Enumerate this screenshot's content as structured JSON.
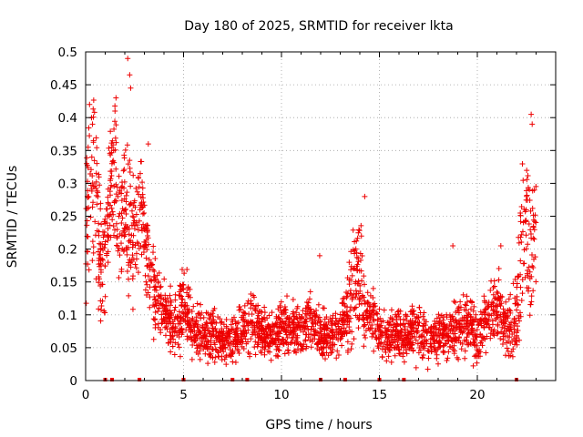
{
  "chart_data": {
    "type": "scatter",
    "title": "Day 180 of 2025, SRMTID for receiver lkta",
    "xlabel": "GPS time / hours",
    "ylabel": "SRMTID / TECUs",
    "xlim": [
      0,
      24
    ],
    "ylim": [
      0,
      0.5
    ],
    "x_ticks": [
      0,
      5,
      10,
      15,
      20
    ],
    "x_tick_labels": [
      "0",
      "5",
      "10",
      "15",
      "20"
    ],
    "y_ticks": [
      0,
      0.05,
      0.1,
      0.15,
      0.2,
      0.25,
      0.3,
      0.35,
      0.4,
      0.45,
      0.5
    ],
    "y_tick_labels": [
      "0",
      "0.05",
      "0.1",
      "0.15",
      "0.2",
      "0.25",
      "0.3",
      "0.35",
      "0.4",
      "0.45",
      "0.5"
    ],
    "grid": true,
    "marker": "+",
    "color": "#ee0000",
    "trend_hours": [
      0,
      0.25,
      0.5,
      0.75,
      1.0,
      1.25,
      1.5,
      1.75,
      2.0,
      2.25,
      2.5,
      2.75,
      3.0,
      3.25,
      3.5,
      3.75,
      4.0,
      4.25,
      4.5,
      4.75,
      5.0,
      5.5,
      6.0,
      6.5,
      7.0,
      7.5,
      8.0,
      8.5,
      9.0,
      9.5,
      10.0,
      10.5,
      11.0,
      11.5,
      12.0,
      12.5,
      13.0,
      13.5,
      13.75,
      14.0,
      14.25,
      14.5,
      14.75,
      15.0,
      15.5,
      16.0,
      16.5,
      17.0,
      17.5,
      18.0,
      18.5,
      19.0,
      19.5,
      20.0,
      20.5,
      21.0,
      21.5,
      22.0,
      22.25,
      22.5,
      22.75,
      23.0
    ],
    "trend_values": [
      0.23,
      0.3,
      0.3,
      0.18,
      0.2,
      0.3,
      0.32,
      0.22,
      0.26,
      0.24,
      0.22,
      0.28,
      0.22,
      0.18,
      0.14,
      0.12,
      0.1,
      0.09,
      0.08,
      0.1,
      0.12,
      0.08,
      0.07,
      0.07,
      0.06,
      0.06,
      0.08,
      0.09,
      0.07,
      0.07,
      0.08,
      0.08,
      0.08,
      0.09,
      0.07,
      0.07,
      0.08,
      0.11,
      0.16,
      0.17,
      0.12,
      0.1,
      0.09,
      0.07,
      0.07,
      0.07,
      0.07,
      0.08,
      0.06,
      0.07,
      0.07,
      0.08,
      0.09,
      0.07,
      0.1,
      0.11,
      0.08,
      0.09,
      0.2,
      0.25,
      0.2,
      0.22
    ],
    "spread_values": [
      0.08,
      0.09,
      0.09,
      0.06,
      0.07,
      0.08,
      0.08,
      0.07,
      0.07,
      0.07,
      0.06,
      0.06,
      0.05,
      0.05,
      0.04,
      0.035,
      0.03,
      0.03,
      0.03,
      0.04,
      0.04,
      0.03,
      0.025,
      0.025,
      0.02,
      0.025,
      0.03,
      0.03,
      0.025,
      0.025,
      0.025,
      0.025,
      0.025,
      0.03,
      0.025,
      0.025,
      0.03,
      0.05,
      0.06,
      0.06,
      0.04,
      0.03,
      0.03,
      0.025,
      0.025,
      0.025,
      0.025,
      0.03,
      0.025,
      0.025,
      0.025,
      0.03,
      0.03,
      0.03,
      0.03,
      0.04,
      0.03,
      0.04,
      0.08,
      0.08,
      0.08,
      0.07
    ],
    "outliers": [
      [
        2.15,
        0.49
      ],
      [
        2.25,
        0.465
      ],
      [
        2.3,
        0.445
      ],
      [
        0.2,
        0.42
      ],
      [
        0.3,
        0.4
      ],
      [
        1.55,
        0.43
      ],
      [
        1.5,
        0.41
      ],
      [
        22.75,
        0.405
      ],
      [
        22.8,
        0.39
      ],
      [
        14.25,
        0.28
      ],
      [
        11.95,
        0.19
      ],
      [
        18.75,
        0.205
      ],
      [
        21.2,
        0.205
      ],
      [
        3.2,
        0.36
      ],
      [
        0.05,
        0.33
      ],
      [
        0.35,
        0.39
      ]
    ],
    "zero_markers": [
      1.0,
      1.35,
      2.75,
      5.0,
      7.5,
      8.25,
      12.0,
      13.25,
      15.0,
      16.25,
      22.0
    ],
    "point_count": 2600,
    "seed": 180
  }
}
